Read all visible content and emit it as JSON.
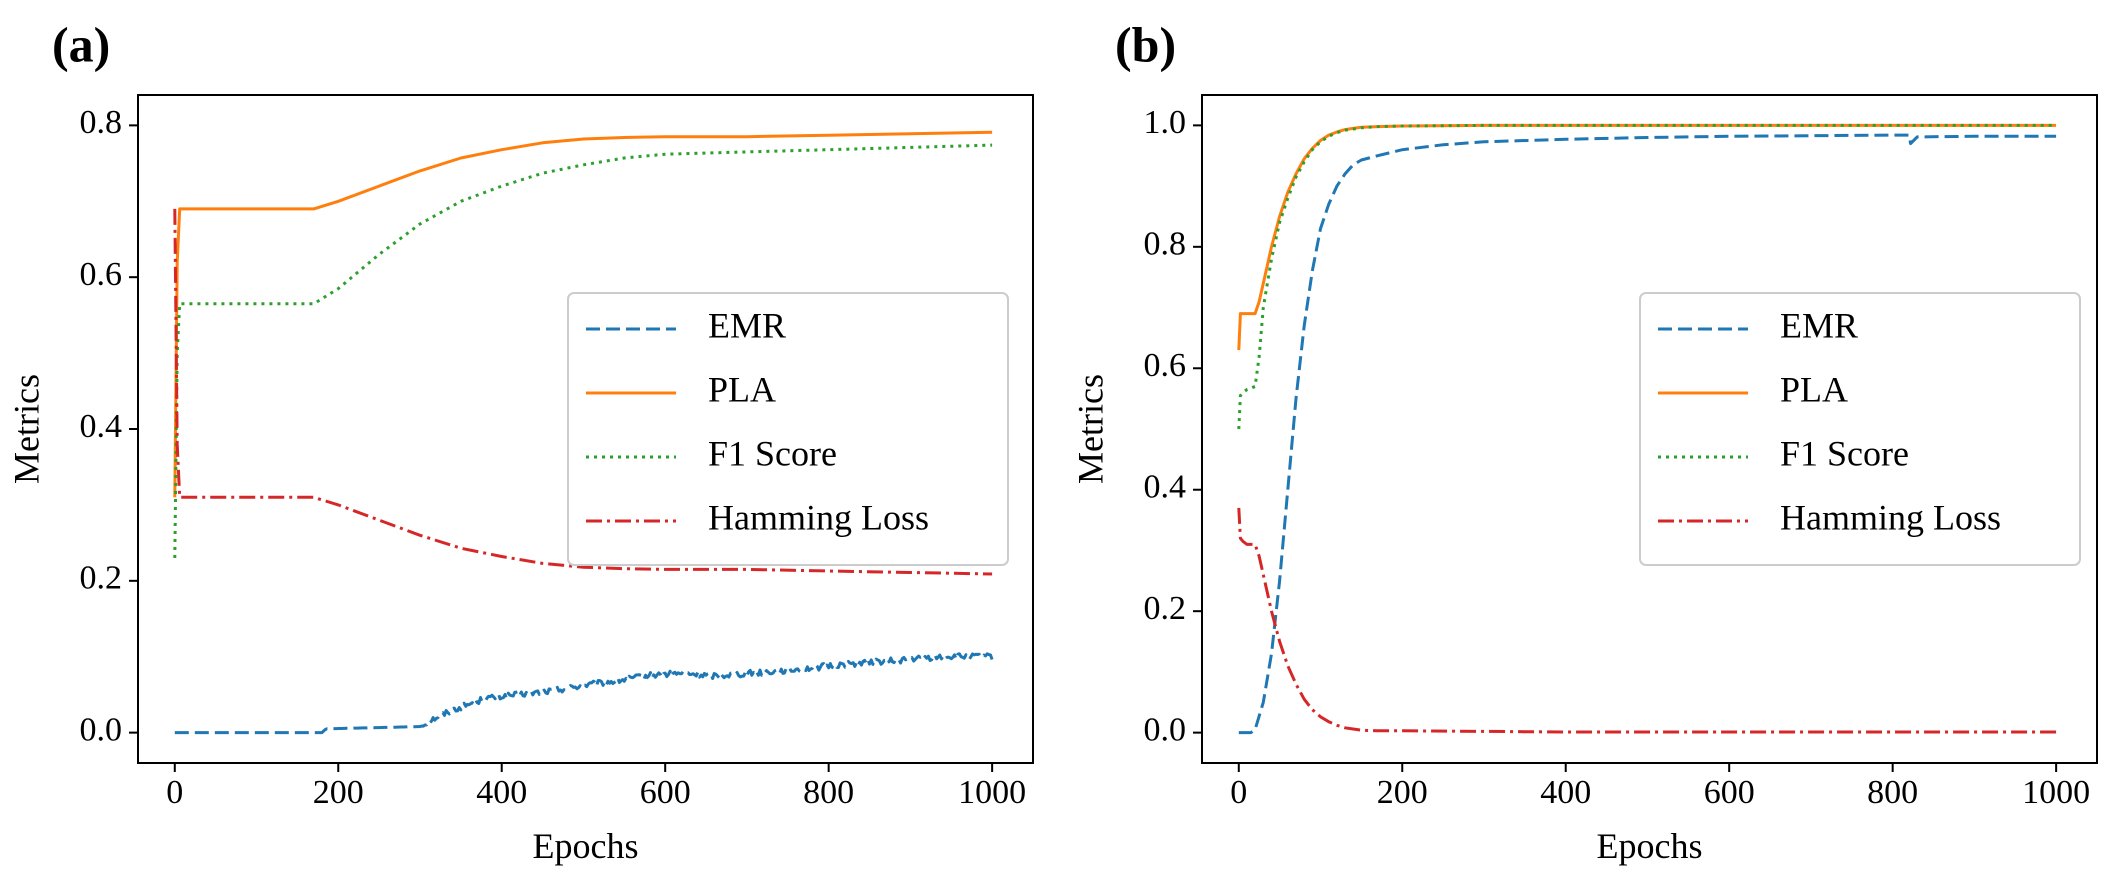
{
  "chart_data": [
    {
      "type": "line",
      "panel_label": "(a)",
      "xlabel": "Epochs",
      "ylabel": "Metrics",
      "xlim": [
        -45,
        1050
      ],
      "ylim": [
        -0.04,
        0.84
      ],
      "xticks": [
        0,
        200,
        400,
        600,
        800,
        1000
      ],
      "yticks": [
        0.0,
        0.2,
        0.4,
        0.6,
        0.8
      ],
      "ytick_labels": [
        "0.0",
        "0.2",
        "0.4",
        "0.6",
        "0.8"
      ],
      "grid": false,
      "legend_position": "center-right",
      "series": [
        {
          "name": "EMR",
          "color": "#1f77b4",
          "dash": "dashed",
          "x": [
            0,
            100,
            180,
            185,
            300,
            310,
            340,
            380,
            420,
            460,
            500,
            540,
            580,
            620,
            660,
            700,
            760,
            820,
            880,
            940,
            1000
          ],
          "y": [
            0.0,
            0.0,
            0.0,
            0.005,
            0.008,
            0.015,
            0.03,
            0.045,
            0.05,
            0.055,
            0.062,
            0.068,
            0.075,
            0.078,
            0.075,
            0.078,
            0.083,
            0.09,
            0.095,
            0.1,
            0.1
          ],
          "noise": 0.004
        },
        {
          "name": "PLA",
          "color": "#ff7f0e",
          "dash": "solid",
          "x": [
            0,
            3,
            6,
            10,
            20,
            100,
            170,
            200,
            250,
            300,
            350,
            400,
            450,
            500,
            550,
            600,
            700,
            800,
            900,
            1000
          ],
          "y": [
            0.31,
            0.62,
            0.69,
            0.69,
            0.69,
            0.69,
            0.69,
            0.7,
            0.72,
            0.74,
            0.757,
            0.768,
            0.777,
            0.782,
            0.784,
            0.785,
            0.785,
            0.787,
            0.789,
            0.791
          ],
          "noise": 0.0
        },
        {
          "name": "F1 Score",
          "color": "#2ca02c",
          "dash": "dotted",
          "x": [
            0,
            3,
            6,
            10,
            20,
            100,
            170,
            200,
            250,
            300,
            350,
            400,
            450,
            500,
            550,
            600,
            700,
            800,
            900,
            1000
          ],
          "y": [
            0.23,
            0.5,
            0.565,
            0.565,
            0.565,
            0.565,
            0.565,
            0.585,
            0.63,
            0.67,
            0.7,
            0.72,
            0.737,
            0.748,
            0.757,
            0.762,
            0.765,
            0.768,
            0.771,
            0.774
          ],
          "noise": 0.0
        },
        {
          "name": "Hamming Loss",
          "color": "#d62728",
          "dash": "dashdot",
          "x": [
            0,
            3,
            6,
            10,
            20,
            100,
            170,
            200,
            250,
            300,
            350,
            400,
            450,
            500,
            550,
            600,
            700,
            800,
            900,
            1000
          ],
          "y": [
            0.69,
            0.38,
            0.31,
            0.31,
            0.31,
            0.31,
            0.31,
            0.3,
            0.28,
            0.26,
            0.243,
            0.232,
            0.223,
            0.218,
            0.216,
            0.215,
            0.215,
            0.213,
            0.211,
            0.209
          ],
          "noise": 0.0
        }
      ]
    },
    {
      "type": "line",
      "panel_label": "(b)",
      "xlabel": "Epochs",
      "ylabel": "Metrics",
      "xlim": [
        -45,
        1050
      ],
      "ylim": [
        -0.05,
        1.05
      ],
      "xticks": [
        0,
        200,
        400,
        600,
        800,
        1000
      ],
      "yticks": [
        0.0,
        0.2,
        0.4,
        0.6,
        0.8,
        1.0
      ],
      "ytick_labels": [
        "0.0",
        "0.2",
        "0.4",
        "0.6",
        "0.8",
        "1.0"
      ],
      "grid": false,
      "legend_position": "center-right",
      "series": [
        {
          "name": "EMR",
          "color": "#1f77b4",
          "dash": "dashed",
          "x": [
            0,
            15,
            20,
            30,
            40,
            50,
            60,
            70,
            80,
            90,
            100,
            110,
            120,
            130,
            140,
            150,
            170,
            200,
            250,
            300,
            400,
            500,
            600,
            700,
            800,
            820,
            822,
            830,
            900,
            1000
          ],
          "y": [
            0.0,
            0.0,
            0.005,
            0.05,
            0.13,
            0.25,
            0.4,
            0.55,
            0.67,
            0.76,
            0.83,
            0.87,
            0.9,
            0.92,
            0.935,
            0.943,
            0.95,
            0.96,
            0.968,
            0.973,
            0.977,
            0.98,
            0.982,
            0.983,
            0.984,
            0.984,
            0.97,
            0.981,
            0.982,
            0.982
          ],
          "noise": 0.0
        },
        {
          "name": "PLA",
          "color": "#ff7f0e",
          "dash": "solid",
          "x": [
            0,
            2,
            5,
            10,
            20,
            25,
            30,
            40,
            50,
            60,
            70,
            80,
            90,
            100,
            110,
            120,
            130,
            140,
            150,
            170,
            200,
            300,
            400,
            500,
            600,
            700,
            800,
            900,
            1000
          ],
          "y": [
            0.63,
            0.69,
            0.69,
            0.69,
            0.69,
            0.71,
            0.74,
            0.8,
            0.85,
            0.89,
            0.92,
            0.945,
            0.962,
            0.975,
            0.984,
            0.989,
            0.993,
            0.995,
            0.997,
            0.998,
            0.999,
            1.0,
            1.0,
            1.0,
            1.0,
            1.0,
            1.0,
            1.0,
            1.0
          ],
          "noise": 0.0
        },
        {
          "name": "F1 Score",
          "color": "#2ca02c",
          "dash": "dotted",
          "x": [
            0,
            2,
            5,
            10,
            20,
            25,
            30,
            40,
            50,
            60,
            70,
            80,
            90,
            100,
            110,
            120,
            130,
            140,
            150,
            170,
            200,
            300,
            400,
            500,
            600,
            700,
            800,
            900,
            1000
          ],
          "y": [
            0.5,
            0.555,
            0.56,
            0.565,
            0.57,
            0.62,
            0.7,
            0.78,
            0.84,
            0.88,
            0.915,
            0.94,
            0.96,
            0.973,
            0.982,
            0.988,
            0.992,
            0.994,
            0.996,
            0.998,
            0.999,
            1.0,
            1.0,
            1.0,
            1.0,
            1.0,
            1.0,
            1.0,
            1.0
          ],
          "noise": 0.0
        },
        {
          "name": "Hamming Loss",
          "color": "#d62728",
          "dash": "dashdot",
          "x": [
            0,
            2,
            5,
            10,
            20,
            25,
            30,
            40,
            50,
            60,
            70,
            80,
            90,
            100,
            110,
            120,
            130,
            140,
            150,
            170,
            200,
            300,
            400,
            500,
            600,
            700,
            800,
            900,
            1000
          ],
          "y": [
            0.37,
            0.32,
            0.315,
            0.31,
            0.31,
            0.29,
            0.26,
            0.2,
            0.15,
            0.11,
            0.08,
            0.055,
            0.038,
            0.026,
            0.018,
            0.012,
            0.008,
            0.006,
            0.004,
            0.003,
            0.003,
            0.002,
            0.001,
            0.001,
            0.001,
            0.001,
            0.001,
            0.001,
            0.001
          ],
          "noise": 0.0
        }
      ]
    }
  ]
}
